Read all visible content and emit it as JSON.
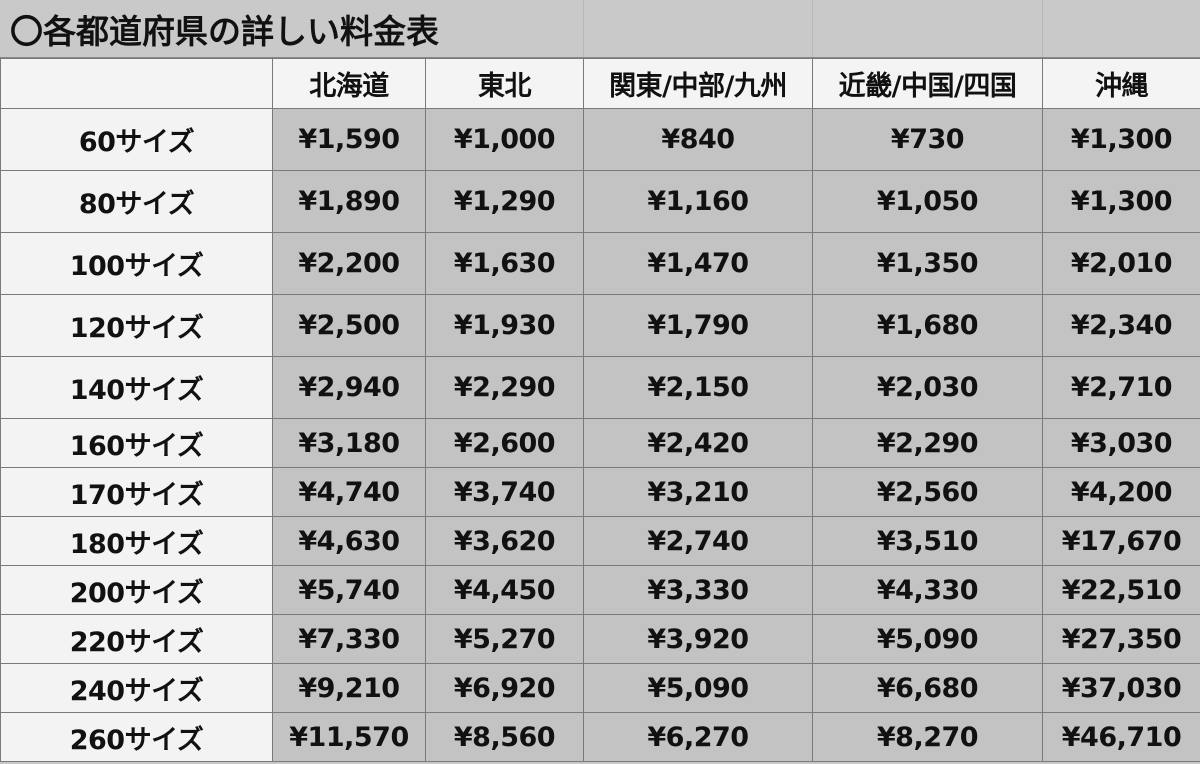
{
  "title": "〇各都道府県の詳しい料金表",
  "columns": [
    "",
    "北海道",
    "東北",
    "関東/中部/九州",
    "近畿/中国/四国",
    "沖縄"
  ],
  "rows": [
    {
      "size": "60サイズ",
      "values": [
        "¥1,590",
        "¥1,000",
        "¥840",
        "¥730",
        "¥1,300"
      ]
    },
    {
      "size": "80サイズ",
      "values": [
        "¥1,890",
        "¥1,290",
        "¥1,160",
        "¥1,050",
        "¥1,300"
      ]
    },
    {
      "size": "100サイズ",
      "values": [
        "¥2,200",
        "¥1,630",
        "¥1,470",
        "¥1,350",
        "¥2,010"
      ]
    },
    {
      "size": "120サイズ",
      "values": [
        "¥2,500",
        "¥1,930",
        "¥1,790",
        "¥1,680",
        "¥2,340"
      ]
    },
    {
      "size": "140サイズ",
      "values": [
        "¥2,940",
        "¥2,290",
        "¥2,150",
        "¥2,030",
        "¥2,710"
      ]
    },
    {
      "size": "160サイズ",
      "values": [
        "¥3,180",
        "¥2,600",
        "¥2,420",
        "¥2,290",
        "¥3,030"
      ]
    },
    {
      "size": "170サイズ",
      "values": [
        "¥4,740",
        "¥3,740",
        "¥3,210",
        "¥2,560",
        "¥4,200"
      ]
    },
    {
      "size": "180サイズ",
      "values": [
        "¥4,630",
        "¥3,620",
        "¥2,740",
        "¥3,510",
        "¥17,670"
      ]
    },
    {
      "size": "200サイズ",
      "values": [
        "¥5,740",
        "¥4,450",
        "¥3,330",
        "¥4,330",
        "¥22,510"
      ]
    },
    {
      "size": "220サイズ",
      "values": [
        "¥7,330",
        "¥5,270",
        "¥3,920",
        "¥5,090",
        "¥27,350"
      ]
    },
    {
      "size": "240サイズ",
      "values": [
        "¥9,210",
        "¥6,920",
        "¥5,090",
        "¥6,680",
        "¥37,030"
      ]
    },
    {
      "size": "260サイズ",
      "values": [
        "¥11,570",
        "¥8,560",
        "¥6,270",
        "¥8,270",
        "¥46,710"
      ]
    }
  ]
}
